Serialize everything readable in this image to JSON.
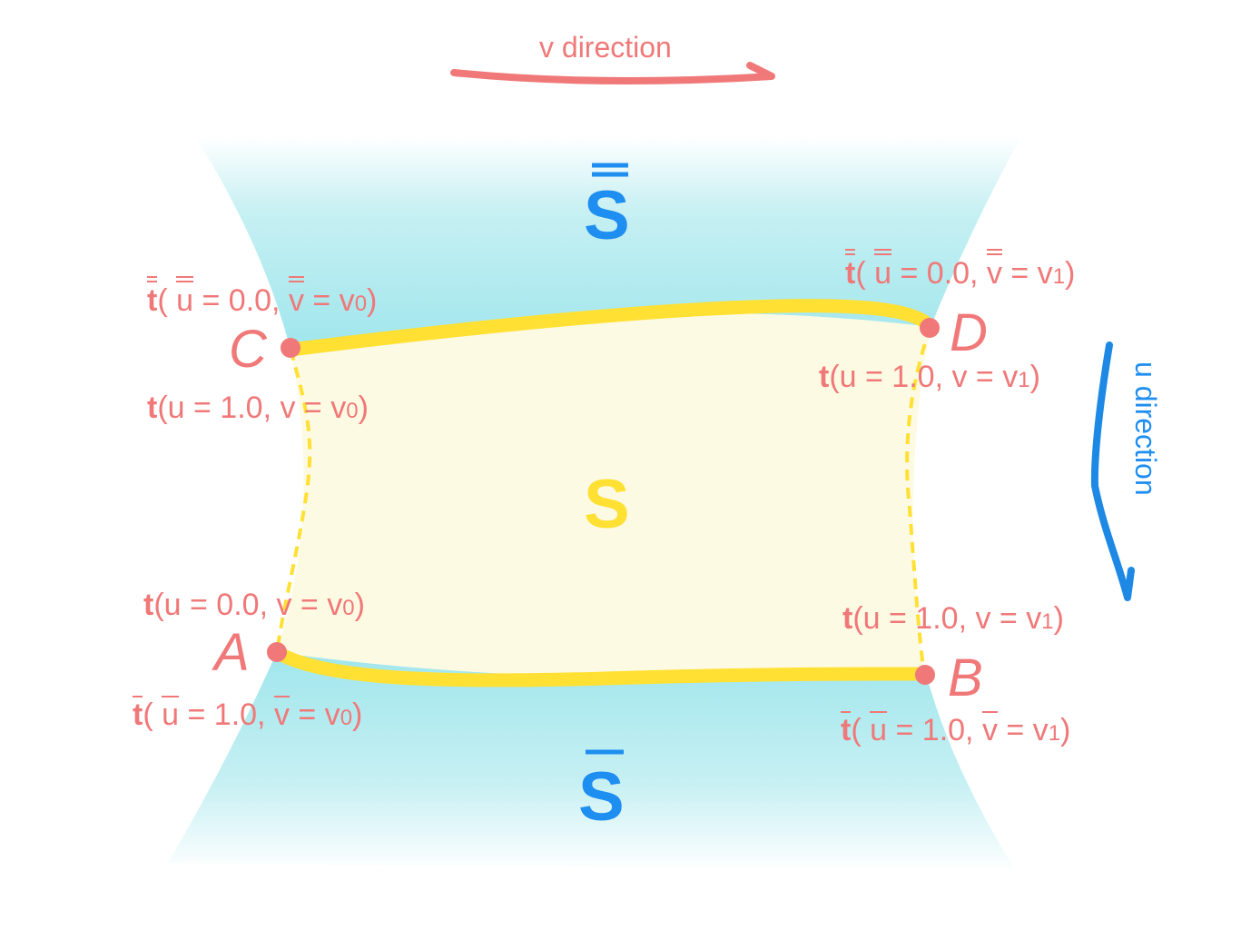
{
  "directions": {
    "v_label": "v direction",
    "u_label": "u direction"
  },
  "surfaces": {
    "center": "S",
    "top": "S",
    "bottom": "S"
  },
  "points": {
    "A": "A",
    "B": "B",
    "C": "C",
    "D": "D"
  },
  "labels": {
    "C_top": {
      "t": "t",
      "open": "( ",
      "u": "u",
      "u_val": " = 0.0, ",
      "v": "v",
      "v_val": " = v",
      "sub": "0",
      "close": ")"
    },
    "C_bottom": {
      "t": "t",
      "body": "(u = 1.0, v = v",
      "sub": "0",
      "close": ")"
    },
    "D_top": {
      "t": "t",
      "open": "( ",
      "u": "u",
      "u_val": " = 0.0, ",
      "v": "v",
      "v_val": " = v",
      "sub": "1",
      "close": ")"
    },
    "D_bottom": {
      "t": "t",
      "body": "(u = 1.0, v = v",
      "sub": "1",
      "close": ")"
    },
    "A_top": {
      "t": "t",
      "body": "(u = 0.0, v = v",
      "sub": "0",
      "close": ")"
    },
    "A_bottom": {
      "t": "t",
      "open": "( ",
      "u": "u",
      "u_val": " = 1.0, ",
      "v": "v",
      "v_val": " = v",
      "sub": "0",
      "close": ")"
    },
    "B_top": {
      "t": "t",
      "body": "(u = 1.0, v = v",
      "sub": "1",
      "close": ")"
    },
    "B_bottom": {
      "t": "t",
      "open": "( ",
      "u": "u",
      "u_val": " = 1.0, ",
      "v": "v",
      "v_val": " = v",
      "sub": "1",
      "close": ")"
    }
  },
  "colors": {
    "label_color": "#f07878",
    "surface_fill": "#fdfae3",
    "boundary_yellow": "#ffe033",
    "cyan_region": "#9fe6ec",
    "blue_surface_text": "#1e8ef0",
    "v_arrow": "#f07878",
    "u_arrow": "#1e88e5"
  }
}
